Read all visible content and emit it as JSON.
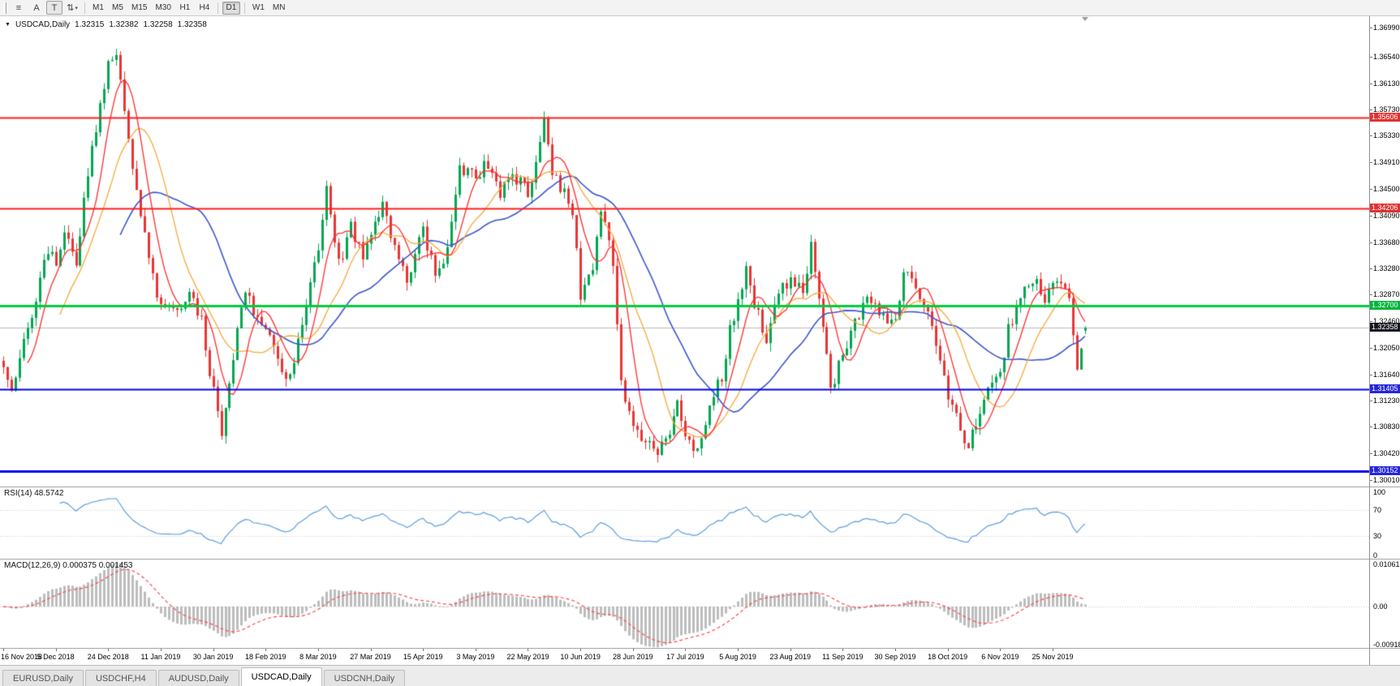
{
  "toolbar": {
    "left_buttons": [
      {
        "name": "chart-list-icon",
        "glyph": "≡"
      },
      {
        "name": "arrow-tool-icon",
        "glyph": "A"
      },
      {
        "name": "text-tool-icon",
        "glyph": "T",
        "active": true
      },
      {
        "name": "cursor-tool-icon",
        "glyph": "⇅",
        "caret": "▾"
      }
    ],
    "timeframes": [
      "M1",
      "M5",
      "M15",
      "M30",
      "H1",
      "H4",
      "D1",
      "W1",
      "MN"
    ],
    "active_timeframe": "D1"
  },
  "chart": {
    "symbol": "USDCAD,Daily",
    "dropdown_glyph": "▼",
    "ohlc": {
      "open": "1.32315",
      "high": "1.32382",
      "low": "1.32258",
      "close": "1.32358"
    },
    "price_range": {
      "top": 1.3699,
      "bottom": 1.3001
    },
    "price_axis": [
      "1.36990",
      "1.36540",
      "1.36130",
      "1.35730",
      "1.35330",
      "1.34910",
      "1.34500",
      "1.34090",
      "1.33680",
      "1.33280",
      "1.32870",
      "1.32460",
      "1.32050",
      "1.31640",
      "1.31230",
      "1.30830",
      "1.30420",
      "1.30010"
    ],
    "levels": [
      {
        "value": "1.35606",
        "color": "#ff1f1f",
        "badge": "#e03232",
        "width": 2
      },
      {
        "value": "1.34206",
        "color": "#ff1f1f",
        "badge": "#e03232",
        "width": 2
      },
      {
        "value": "1.32700",
        "color": "#00cc3c",
        "badge": "#00b43c",
        "width": 3
      },
      {
        "value": "1.31405",
        "color": "#0000f0",
        "badge": "#2626d8",
        "width": 2
      },
      {
        "value": "1.30152",
        "color": "#0000f0",
        "badge": "#2626d8",
        "width": 3
      }
    ],
    "current_price": {
      "value": "1.32358",
      "badge": "#15161f",
      "line_color": "#bcbcbc"
    },
    "candle_up_color": "#00a650",
    "candle_down_color": "#e93535",
    "ma_colors": {
      "fast": "#ff2e2e",
      "medium": "#f7a93c",
      "slow": "#3a57cf"
    },
    "anchors": [
      [
        0,
        1.3185
      ],
      [
        2,
        1.314
      ],
      [
        5,
        1.3215
      ],
      [
        8,
        1.3285
      ],
      [
        11,
        1.3355
      ],
      [
        13,
        1.333
      ],
      [
        15,
        1.3385
      ],
      [
        18,
        1.333
      ],
      [
        21,
        1.348
      ],
      [
        24,
        1.358
      ],
      [
        26,
        1.364
      ],
      [
        28,
        1.3662
      ],
      [
        30,
        1.3575
      ],
      [
        33,
        1.3445
      ],
      [
        36,
        1.3345
      ],
      [
        39,
        1.3262
      ],
      [
        43,
        1.3255
      ],
      [
        46,
        1.3295
      ],
      [
        49,
        1.3245
      ],
      [
        52,
        1.3135
      ],
      [
        54,
        1.3068
      ],
      [
        57,
        1.3195
      ],
      [
        60,
        1.329
      ],
      [
        63,
        1.3245
      ],
      [
        65,
        1.3232
      ],
      [
        68,
        1.318
      ],
      [
        71,
        1.3162
      ],
      [
        74,
        1.3245
      ],
      [
        78,
        1.3365
      ],
      [
        80,
        1.345
      ],
      [
        83,
        1.3332
      ],
      [
        86,
        1.339
      ],
      [
        89,
        1.3345
      ],
      [
        91,
        1.3382
      ],
      [
        94,
        1.3432
      ],
      [
        97,
        1.3362
      ],
      [
        100,
        1.3315
      ],
      [
        104,
        1.3382
      ],
      [
        107,
        1.3325
      ],
      [
        110,
        1.3355
      ],
      [
        113,
        1.3478
      ],
      [
        117,
        1.3472
      ],
      [
        120,
        1.3492
      ],
      [
        123,
        1.3442
      ],
      [
        126,
        1.3475
      ],
      [
        130,
        1.3442
      ],
      [
        132,
        1.3492
      ],
      [
        134,
        1.3565
      ],
      [
        136,
        1.3482
      ],
      [
        139,
        1.3442
      ],
      [
        141,
        1.3418
      ],
      [
        143,
        1.3285
      ],
      [
        146,
        1.333
      ],
      [
        148,
        1.342
      ],
      [
        151,
        1.333
      ],
      [
        153,
        1.3152
      ],
      [
        156,
        1.3092
      ],
      [
        159,
        1.3062
      ],
      [
        162,
        1.3042
      ],
      [
        165,
        1.3072
      ],
      [
        167,
        1.3122
      ],
      [
        169,
        1.3062
      ],
      [
        172,
        1.3045
      ],
      [
        175,
        1.3122
      ],
      [
        178,
        1.3162
      ],
      [
        180,
        1.3232
      ],
      [
        182,
        1.3272
      ],
      [
        184,
        1.3332
      ],
      [
        186,
        1.3272
      ],
      [
        189,
        1.3222
      ],
      [
        192,
        1.3292
      ],
      [
        195,
        1.3312
      ],
      [
        198,
        1.3292
      ],
      [
        200,
        1.3358
      ],
      [
        203,
        1.3232
      ],
      [
        205,
        1.3142
      ],
      [
        208,
        1.3192
      ],
      [
        211,
        1.3242
      ],
      [
        214,
        1.3292
      ],
      [
        217,
        1.3252
      ],
      [
        221,
        1.3242
      ],
      [
        223,
        1.3332
      ],
      [
        226,
        1.3292
      ],
      [
        229,
        1.3262
      ],
      [
        231,
        1.3202
      ],
      [
        234,
        1.3132
      ],
      [
        237,
        1.3082
      ],
      [
        239,
        1.3052
      ],
      [
        242,
        1.3112
      ],
      [
        244,
        1.3142
      ],
      [
        247,
        1.3162
      ],
      [
        249,
        1.3232
      ],
      [
        252,
        1.3292
      ],
      [
        255,
        1.3312
      ],
      [
        258,
        1.3282
      ],
      [
        260,
        1.3302
      ],
      [
        262,
        1.3312
      ],
      [
        264,
        1.3282
      ],
      [
        266,
        1.3162
      ],
      [
        267,
        1.3212
      ],
      [
        268,
        1.32358
      ]
    ],
    "dates": [
      {
        "label": "16 Nov 2018",
        "i": 0
      },
      {
        "label": "5 Dec 2018",
        "i": 13
      },
      {
        "label": "24 Dec 2018",
        "i": 26
      },
      {
        "label": "11 Jan 2019",
        "i": 39
      },
      {
        "label": "30 Jan 2019",
        "i": 52
      },
      {
        "label": "18 Feb 2019",
        "i": 65
      },
      {
        "label": "8 Mar 2019",
        "i": 78
      },
      {
        "label": "27 Mar 2019",
        "i": 91
      },
      {
        "label": "15 Apr 2019",
        "i": 104
      },
      {
        "label": "3 May 2019",
        "i": 117
      },
      {
        "label": "22 May 2019",
        "i": 130
      },
      {
        "label": "10 Jun 2019",
        "i": 143
      },
      {
        "label": "28 Jun 2019",
        "i": 156
      },
      {
        "label": "17 Jul 2019",
        "i": 169
      },
      {
        "label": "5 Aug 2019",
        "i": 182
      },
      {
        "label": "23 Aug 2019",
        "i": 195
      },
      {
        "label": "11 Sep 2019",
        "i": 208
      },
      {
        "label": "30 Sep 2019",
        "i": 221
      },
      {
        "label": "18 Oct 2019",
        "i": 234
      },
      {
        "label": "6 Nov 2019",
        "i": 247
      },
      {
        "label": "25 Nov 2019",
        "i": 260
      }
    ]
  },
  "rsi": {
    "label": "RSI(14) 48.5742",
    "line_color": "#5e9fdd",
    "levels": [
      70,
      30
    ],
    "scale": [
      {
        "v": 100,
        "t": "100"
      },
      {
        "v": 70,
        "t": "70"
      },
      {
        "v": 30,
        "t": "30"
      },
      {
        "v": 0,
        "t": "0"
      }
    ]
  },
  "macd": {
    "label": "MACD(12,26,9) 0.000375 0.001453",
    "hist_color": "#bdbdbd",
    "signal_color": "#ff4a4a",
    "max": 0.010615,
    "min": -0.00918,
    "scale": {
      "top": "0.010615",
      "zero": "0.00",
      "bottom": "-0.00918"
    }
  },
  "tabs": [
    {
      "label": "EURUSD,Daily"
    },
    {
      "label": "USDCHF,H4"
    },
    {
      "label": "AUDUSD,Daily"
    },
    {
      "label": "USDCAD,Daily",
      "active": true
    },
    {
      "label": "USDCNH,Daily"
    }
  ]
}
